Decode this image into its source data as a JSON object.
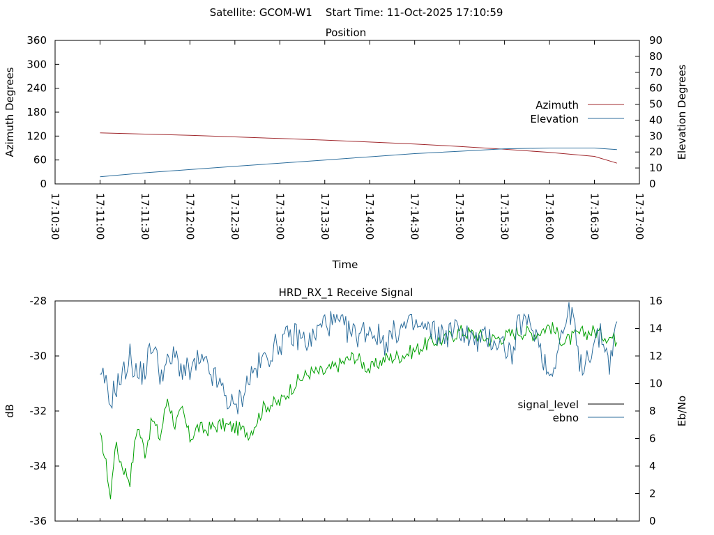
{
  "figure": {
    "title": "Satellite: GCOM-W1    Start Time: 11-Oct-2025 17:10:59"
  },
  "chart_data": [
    {
      "id": "position",
      "type": "line",
      "title": "Position",
      "xlabel": "Time",
      "ylabel": "Azimuth Degrees",
      "y2label": "Elevation Degrees",
      "xlim_seconds": [
        0,
        390
      ],
      "x_tick_labels": [
        "17:10:30",
        "17:11:00",
        "17:11:30",
        "17:12:00",
        "17:12:30",
        "17:13:00",
        "17:13:30",
        "17:14:00",
        "17:14:30",
        "17:15:00",
        "17:15:30",
        "17:16:00",
        "17:16:30",
        "17:17:00"
      ],
      "ylim": [
        0,
        360
      ],
      "y_tick_labels": [
        "0",
        "60",
        "120",
        "180",
        "240",
        "300",
        "360"
      ],
      "y2lim": [
        0,
        90
      ],
      "y2_tick_labels": [
        "0",
        "10",
        "20",
        "30",
        "40",
        "50",
        "60",
        "70",
        "80",
        "90"
      ],
      "legend_position": "right",
      "colors": {
        "azimuth": "#a0282d",
        "elevation": "#2c6d9c"
      },
      "series": [
        {
          "name": "Azimuth",
          "axis": "left",
          "x": [
            30,
            60,
            90,
            120,
            150,
            180,
            210,
            240,
            270,
            300,
            330,
            360,
            375
          ],
          "values": [
            128,
            125,
            122,
            118,
            114,
            110,
            105,
            100,
            94,
            87,
            79,
            69,
            52
          ]
        },
        {
          "name": "Elevation",
          "axis": "right",
          "x": [
            30,
            60,
            90,
            120,
            150,
            180,
            210,
            240,
            270,
            300,
            330,
            360,
            375
          ],
          "values": [
            4.5,
            7,
            9,
            11,
            13,
            15,
            17,
            19,
            20.5,
            22,
            22.5,
            22.5,
            21.5
          ]
        }
      ]
    },
    {
      "id": "receive-signal",
      "type": "line",
      "title": "HRD_RX_1 Receive Signal",
      "xlabel": "",
      "ylabel": "dB",
      "y2label": "Eb/No",
      "xlim_seconds": [
        0,
        390
      ],
      "ylim": [
        -36,
        -28
      ],
      "y_tick_labels": [
        "-36",
        "-34",
        "-32",
        "-30",
        "-28"
      ],
      "y2lim": [
        0,
        16
      ],
      "y2_tick_labels": [
        "0",
        "2",
        "4",
        "6",
        "8",
        "10",
        "12",
        "14",
        "16"
      ],
      "legend_position": "right",
      "colors": {
        "signal_level": "#00a000",
        "signal_level_legend": "#000000",
        "ebno": "#2c6d9c"
      },
      "series": [
        {
          "name": "signal_level",
          "axis": "left",
          "x": [
            30,
            32,
            35,
            37,
            40,
            45,
            50,
            55,
            60,
            65,
            70,
            75,
            80,
            85,
            90,
            95,
            100,
            110,
            120,
            130,
            140,
            150,
            160,
            170,
            180,
            190,
            200,
            210,
            220,
            230,
            240,
            250,
            260,
            270,
            280,
            290,
            300,
            310,
            320,
            330,
            340,
            350,
            360,
            370,
            375
          ],
          "values": [
            -33.0,
            -33.3,
            -34.3,
            -35.2,
            -33.2,
            -34.0,
            -34.5,
            -32.5,
            -33.5,
            -32.3,
            -33.0,
            -31.5,
            -32.5,
            -32.0,
            -33.0,
            -32.6,
            -32.7,
            -32.5,
            -32.6,
            -32.8,
            -31.8,
            -31.7,
            -31.0,
            -30.6,
            -30.6,
            -30.3,
            -30.0,
            -30.5,
            -30.1,
            -30.0,
            -29.8,
            -29.5,
            -29.4,
            -29.1,
            -29.2,
            -29.4,
            -29.3,
            -29.1,
            -29.2,
            -28.9,
            -29.5,
            -29.2,
            -29.1,
            -29.3,
            -29.4
          ]
        },
        {
          "name": "ebno",
          "axis": "right",
          "x": [
            30,
            33,
            36,
            40,
            45,
            50,
            55,
            60,
            65,
            70,
            75,
            80,
            85,
            90,
            95,
            100,
            110,
            120,
            130,
            140,
            150,
            160,
            170,
            180,
            190,
            200,
            210,
            220,
            230,
            240,
            250,
            260,
            270,
            280,
            290,
            300,
            305,
            310,
            320,
            330,
            340,
            345,
            350,
            355,
            360,
            365,
            370,
            375
          ],
          "values": [
            10,
            10.4,
            8.5,
            9.7,
            10.5,
            12.0,
            10.5,
            11.0,
            13.0,
            10.8,
            11.3,
            12.0,
            11.0,
            10.8,
            11.5,
            11.3,
            9.8,
            8.0,
            10.5,
            11.8,
            13.0,
            13.5,
            13.0,
            14.5,
            14.2,
            13.5,
            14.0,
            13.0,
            14.0,
            14.2,
            13.8,
            13.5,
            14.0,
            13.0,
            13.3,
            12.8,
            12.0,
            14.5,
            14.0,
            10.5,
            14.2,
            15.5,
            11.0,
            12.0,
            13.0,
            13.5,
            11.5,
            14.2
          ]
        }
      ]
    }
  ]
}
